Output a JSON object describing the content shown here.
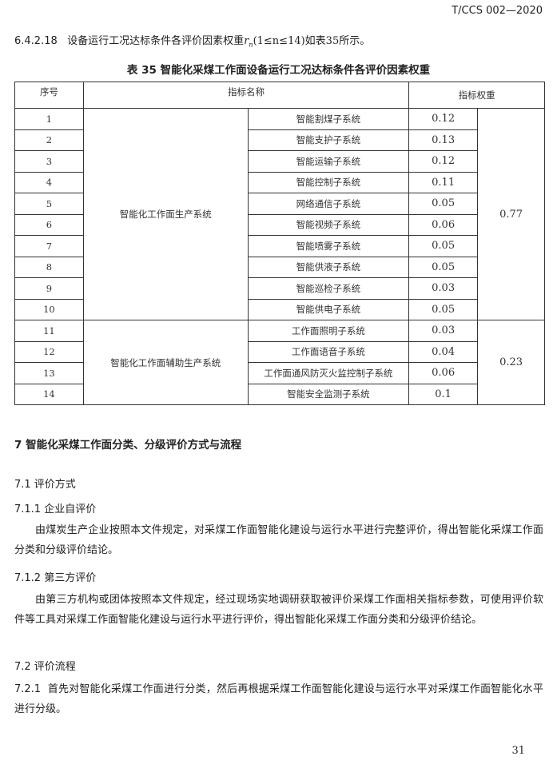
{
  "header": {
    "doc_code": "T/CCS 002—2020"
  },
  "intro": {
    "number": "6.4.2.18",
    "text_before": "设备运行工况达标条件各评价因素权重",
    "var": "r",
    "sub": "n",
    "text_after": "(1≤n≤14)如表35所示。"
  },
  "table": {
    "caption": "表 35 智能化采煤工作面设备运行工况达标条件各评价因素权重",
    "headers": {
      "seq": "序号",
      "name": "指标名称",
      "weight": "指标权重"
    },
    "groups": [
      {
        "name": "智能化工作面生产系统",
        "total": "0.77",
        "rows": [
          {
            "seq": "1",
            "item": "智能割煤子系统",
            "weight": "0.12"
          },
          {
            "seq": "2",
            "item": "智能支护子系统",
            "weight": "0.13"
          },
          {
            "seq": "3",
            "item": "智能运输子系统",
            "weight": "0.12"
          },
          {
            "seq": "4",
            "item": "智能控制子系统",
            "weight": "0.11"
          },
          {
            "seq": "5",
            "item": "网络通信子系统",
            "weight": "0.05"
          },
          {
            "seq": "6",
            "item": "智能视频子系统",
            "weight": "0.06"
          },
          {
            "seq": "7",
            "item": "智能喷雾子系统",
            "weight": "0.05"
          },
          {
            "seq": "8",
            "item": "智能供液子系统",
            "weight": "0.05"
          },
          {
            "seq": "9",
            "item": "智能巡检子系统",
            "weight": "0.03"
          },
          {
            "seq": "10",
            "item": "智能供电子系统",
            "weight": "0.05"
          }
        ]
      },
      {
        "name": "智能化工作面辅助生产系统",
        "total": "0.23",
        "rows": [
          {
            "seq": "11",
            "item": "工作面照明子系统",
            "weight": "0.03"
          },
          {
            "seq": "12",
            "item": "工作面语音子系统",
            "weight": "0.04"
          },
          {
            "seq": "13",
            "item": "工作面通风防灭火监控制子系统",
            "weight": "0.06"
          },
          {
            "seq": "14",
            "item": "智能安全监测子系统",
            "weight": "0.1"
          }
        ]
      }
    ]
  },
  "sections": {
    "s7": "7  智能化采煤工作面分类、分级评价方式与流程",
    "s71": "7.1  评价方式",
    "s711": "7.1.1  企业自评价",
    "p711": "由煤炭生产企业按照本文件规定，对采煤工作面智能化建设与运行水平进行完整评价，得出智能化采煤工作面分类和分级评价结论。",
    "s712": "7.1.2  第三方评价",
    "p712": "由第三方机构或团体按照本文件规定，经过现场实地调研获取被评价采煤工作面相关指标参数，可使用评价软件等工具对采煤工作面智能化建设与运行水平进行评价，得出智能化采煤工作面分类和分级评价结论。",
    "s72": "7.2  评价流程",
    "s721_num": "7.2.1",
    "s721_text": "首先对智能化采煤工作面进行分类，然后再根据采煤工作面智能化建设与运行水平对采煤工作面智能化水平进行分级。"
  },
  "footer": {
    "page": "31"
  }
}
